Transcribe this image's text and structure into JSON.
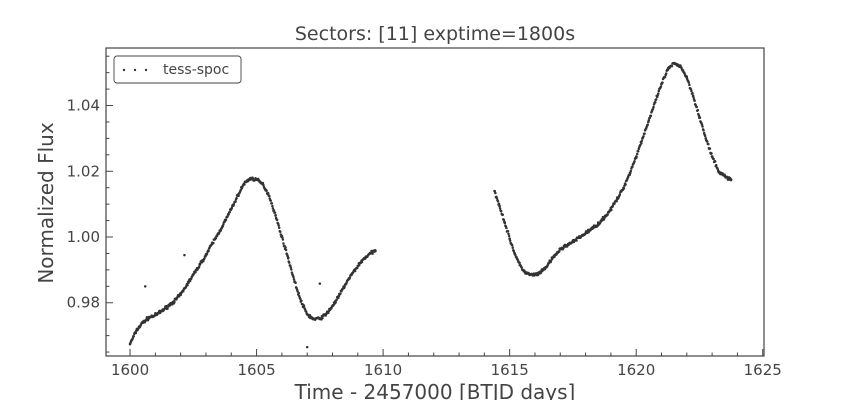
{
  "chart_data": {
    "type": "scatter",
    "title": "Sectors: [11] exptime=1800s",
    "xlabel": "Time - 2457000 [BTJD days]",
    "ylabel": "Normalized Flux",
    "xlim": [
      1599.05,
      1625.05
    ],
    "ylim": [
      0.9638,
      1.0575
    ],
    "xticks": [
      1600,
      1605,
      1610,
      1615,
      1620,
      1625
    ],
    "xtick_labels": [
      "1600",
      "1605",
      "1610",
      "1615",
      "1620",
      "1625"
    ],
    "yticks": [
      0.98,
      1.0,
      1.02,
      1.04
    ],
    "ytick_labels": [
      "0.98",
      "1.00",
      "1.02",
      "1.04"
    ],
    "grid": false,
    "legend": {
      "location": "upper-left",
      "entries": [
        "tess-spoc"
      ]
    },
    "series": [
      {
        "name": "tess-spoc",
        "color": "#333333",
        "marker": "dot",
        "x": [
          1600.0,
          1600.25,
          1600.5,
          1600.75,
          1601.0,
          1601.25,
          1601.5,
          1601.75,
          1602.0,
          1602.25,
          1602.5,
          1602.75,
          1603.0,
          1603.25,
          1603.5,
          1603.75,
          1604.0,
          1604.25,
          1604.5,
          1604.75,
          1605.0,
          1605.25,
          1605.5,
          1605.75,
          1606.0,
          1606.25,
          1606.5,
          1606.75,
          1607.0,
          1607.25,
          1607.5,
          1607.75,
          1608.0,
          1608.25,
          1608.5,
          1608.75,
          1609.0,
          1609.25,
          1609.5,
          1609.7,
          1614.4,
          1614.6,
          1614.8,
          1615.0,
          1615.2,
          1615.4,
          1615.6,
          1615.8,
          1616.0,
          1616.2,
          1616.4,
          1616.6,
          1616.8,
          1617.0,
          1617.25,
          1617.5,
          1617.75,
          1618.0,
          1618.25,
          1618.5,
          1618.75,
          1619.0,
          1619.25,
          1619.5,
          1619.75,
          1620.0,
          1620.25,
          1620.5,
          1620.75,
          1621.0,
          1621.25,
          1621.5,
          1621.75,
          1622.0,
          1622.25,
          1622.5,
          1622.75,
          1623.0,
          1623.25,
          1623.5,
          1623.75
        ],
        "y": [
          0.9675,
          0.9715,
          0.974,
          0.9755,
          0.9762,
          0.9775,
          0.979,
          0.9805,
          0.9825,
          0.9855,
          0.9885,
          0.9915,
          0.9945,
          0.998,
          1.0012,
          1.0048,
          1.0085,
          1.0125,
          1.0162,
          1.0178,
          1.0175,
          1.016,
          1.0125,
          1.0065,
          1.0,
          0.9935,
          0.9865,
          0.9805,
          0.9765,
          0.975,
          0.9752,
          0.9765,
          0.979,
          0.982,
          0.9855,
          0.9885,
          0.9912,
          0.9935,
          0.995,
          0.9958,
          1.014,
          1.0095,
          1.0045,
          0.9995,
          0.995,
          0.9915,
          0.9893,
          0.9885,
          0.9885,
          0.989,
          0.9905,
          0.9925,
          0.9945,
          0.9962,
          0.9975,
          0.9985,
          0.9998,
          1.0012,
          1.0025,
          1.004,
          1.006,
          1.0085,
          1.0115,
          1.015,
          1.0195,
          1.0245,
          1.03,
          1.0355,
          1.041,
          1.0465,
          1.051,
          1.0528,
          1.052,
          1.0485,
          1.043,
          1.0365,
          1.03,
          1.0245,
          1.02,
          1.0185,
          1.0175
        ]
      }
    ],
    "outliers": {
      "x": [
        1600.6,
        1602.15,
        1607.0,
        1607.5
      ],
      "y": [
        0.985,
        0.9945,
        0.9665,
        0.9858
      ]
    }
  }
}
